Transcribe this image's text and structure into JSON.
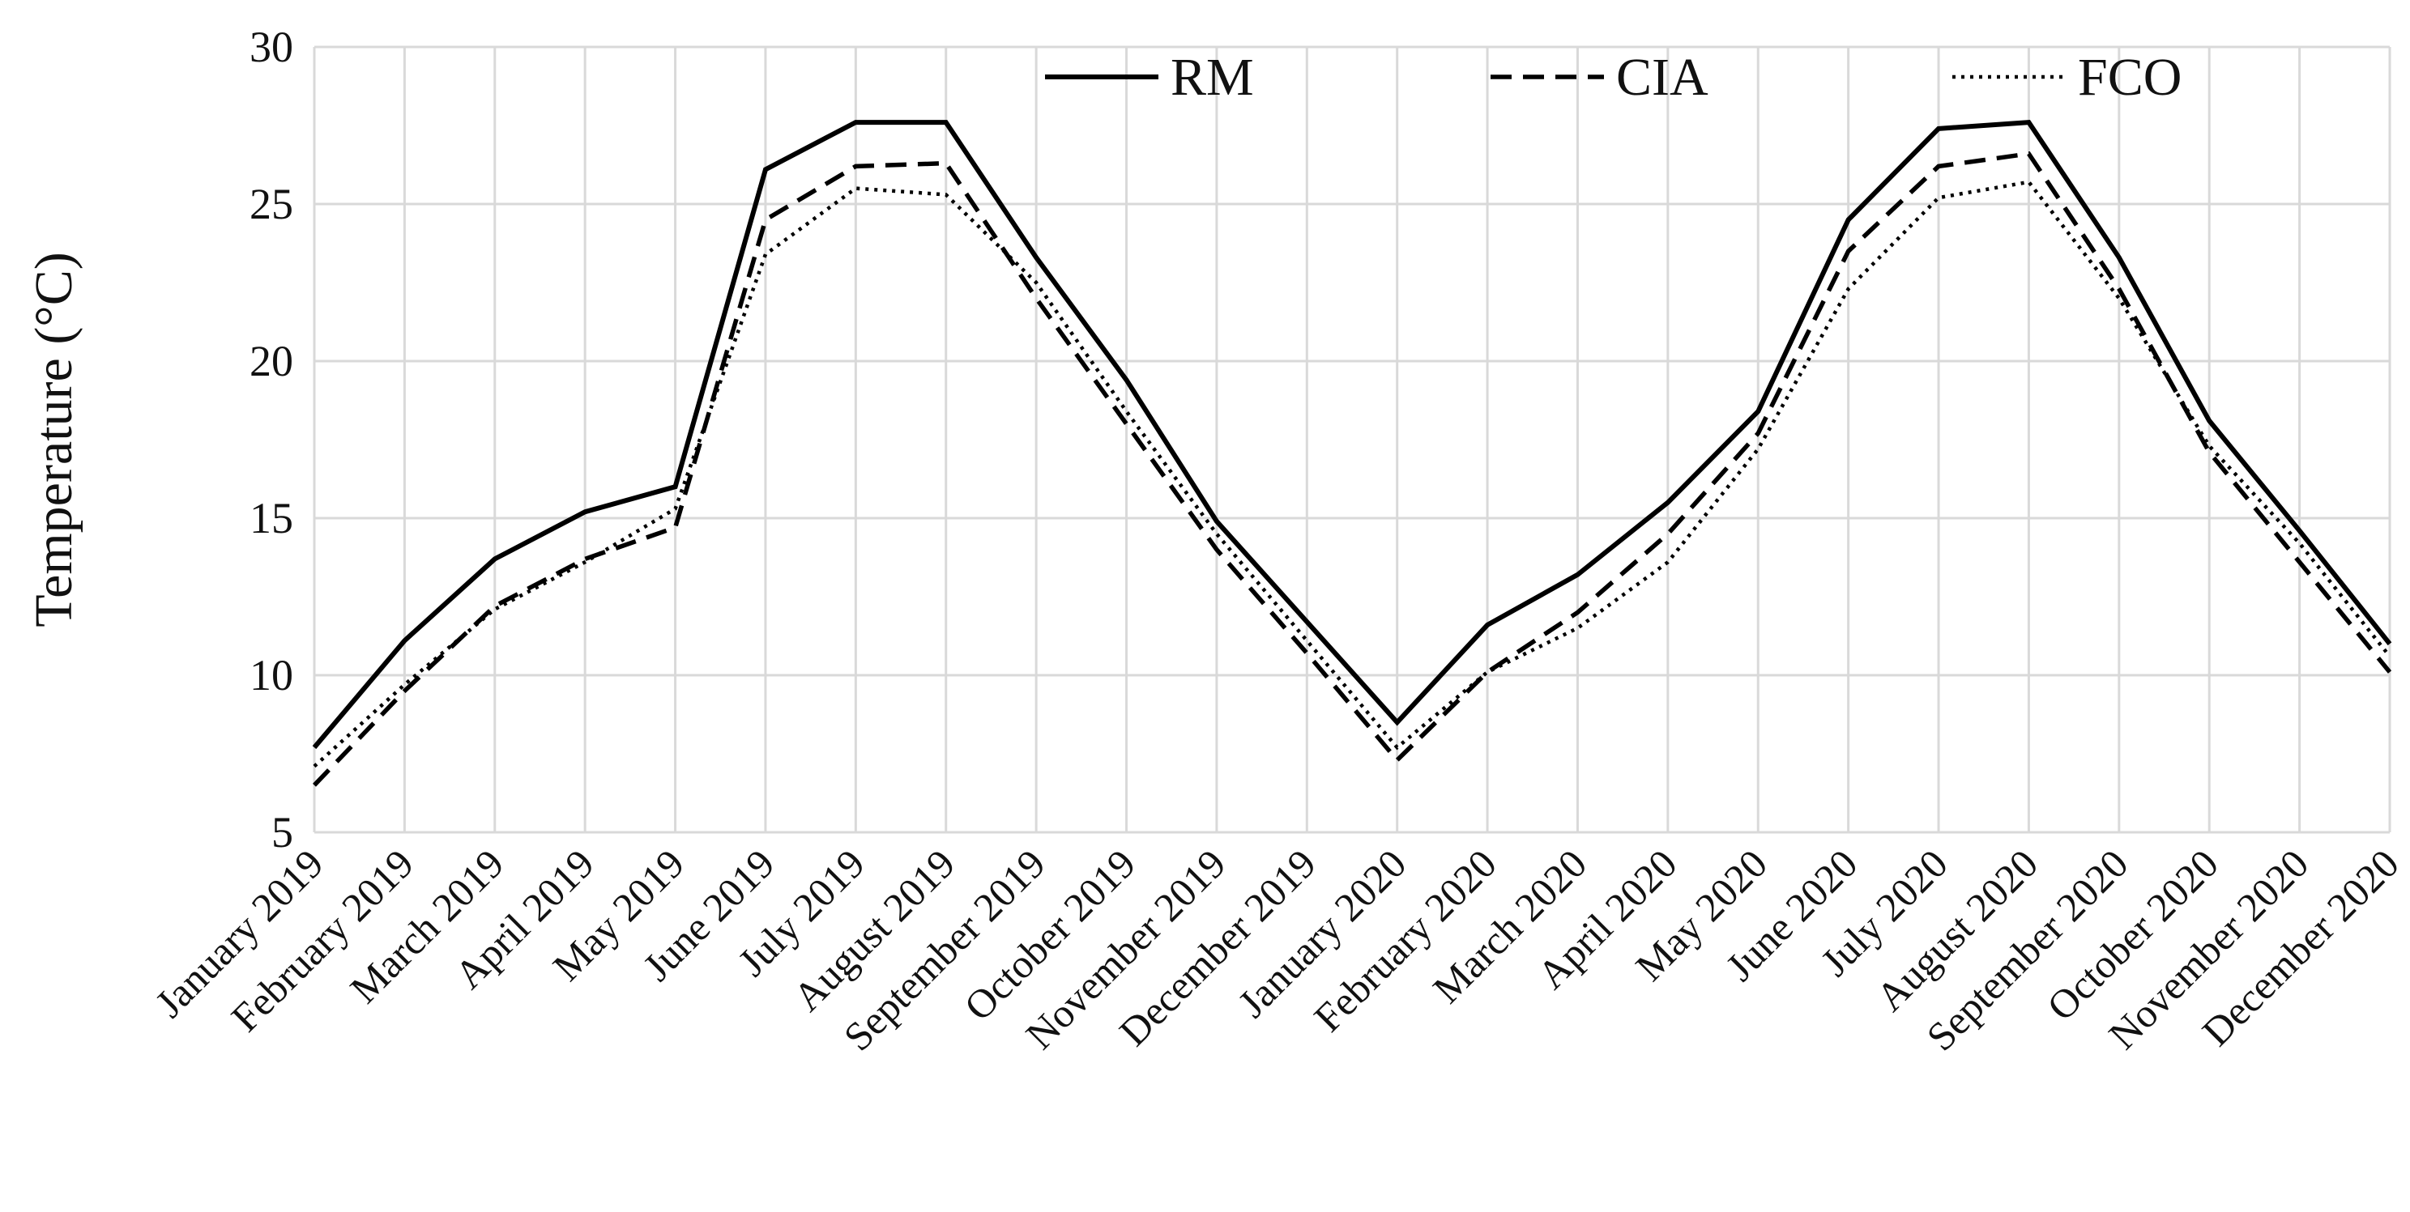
{
  "chart_data": {
    "type": "line",
    "title": "",
    "xlabel": "",
    "ylabel": "Temperature (°C)",
    "ylim": [
      5,
      30
    ],
    "yticks": [
      5,
      10,
      15,
      20,
      25,
      30
    ],
    "grid": "on",
    "legend_position": "top-right",
    "categories": [
      "January 2019",
      "February 2019",
      "March 2019",
      "April 2019",
      "May 2019",
      "June 2019",
      "July 2019",
      "August 2019",
      "September 2019",
      "October 2019",
      "November 2019",
      "December 2019",
      "January 2020",
      "February 2020",
      "March 2020",
      "April 2020",
      "May 2020",
      "June 2020",
      "July 2020",
      "August 2020",
      "September 2020",
      "October 2020",
      "November 2020",
      "December 2020"
    ],
    "series": [
      {
        "name": "RM",
        "style": "solid",
        "color": "#000000",
        "values": [
          7.7,
          11.1,
          13.7,
          15.2,
          16.0,
          26.1,
          27.6,
          27.6,
          23.3,
          19.4,
          14.9,
          11.7,
          8.5,
          11.6,
          13.2,
          15.5,
          18.4,
          24.5,
          27.4,
          27.6,
          23.3,
          18.1,
          14.6,
          11.0
        ]
      },
      {
        "name": "CIA",
        "style": "dashed",
        "color": "#000000",
        "values": [
          6.5,
          9.5,
          12.2,
          13.7,
          14.7,
          24.5,
          26.2,
          26.3,
          22.0,
          18.0,
          14.0,
          10.7,
          7.3,
          10.1,
          12.0,
          14.5,
          17.7,
          23.5,
          26.2,
          26.6,
          22.3,
          17.1,
          13.6,
          10.1
        ]
      },
      {
        "name": "FCO",
        "style": "dotted",
        "color": "#000000",
        "values": [
          7.1,
          9.7,
          12.1,
          13.6,
          15.3,
          23.4,
          25.5,
          25.3,
          22.5,
          18.4,
          14.5,
          11.1,
          7.7,
          10.1,
          11.5,
          13.6,
          17.2,
          22.3,
          25.2,
          25.7,
          22.0,
          17.3,
          14.2,
          10.6
        ]
      }
    ]
  }
}
